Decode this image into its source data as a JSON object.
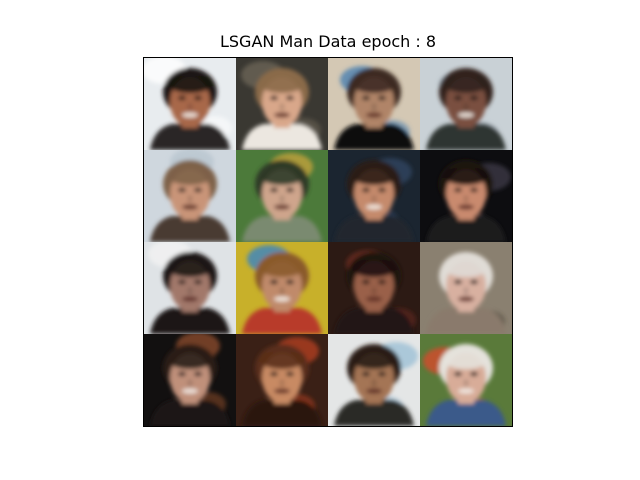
{
  "figure": {
    "title": "LSGAN Man Data epoch : 8"
  },
  "samples": [
    {
      "bg": "#e8ecef",
      "skin": "#a8674a",
      "hair": "#1a1412",
      "accent": "#ffffff",
      "shirt": "#2a2626"
    },
    {
      "bg": "#3a3832",
      "skin": "#d9a78a",
      "hair": "#8a6a48",
      "accent": "#6c6456",
      "shirt": "#ece7e0"
    },
    {
      "bg": "#d4c8b4",
      "skin": "#b08468",
      "hair": "#3d2a22",
      "accent": "#4a7fb0",
      "shirt": "#111111"
    },
    {
      "bg": "#c9d1d6",
      "skin": "#7a5040",
      "hair": "#30241e",
      "accent": "#8a96a0",
      "shirt": "#2e3430"
    },
    {
      "bg": "#cfd7de",
      "skin": "#c99478",
      "hair": "#7e6248",
      "accent": "#b9c5cf",
      "shirt": "#4a3a30"
    },
    {
      "bg": "#4c7a3a",
      "skin": "#cfa58c",
      "hair": "#2e3a28",
      "accent": "#c2a23c",
      "shirt": "#7a8a70"
    },
    {
      "bg": "#1b2530",
      "skin": "#c58a6c",
      "hair": "#2a1d16",
      "accent": "#2f4660",
      "shirt": "#22282e"
    },
    {
      "bg": "#0d0d10",
      "skin": "#c98a6e",
      "hair": "#1a1210",
      "accent": "#3c3a46",
      "shirt": "#1c1a1e"
    },
    {
      "bg": "#dfe3e6",
      "skin": "#a2786a",
      "hair": "#1e1816",
      "accent": "#f2f2f2",
      "shirt": "#1a1818"
    },
    {
      "bg": "#c8b02a",
      "skin": "#c08a6a",
      "hair": "#8a5a2a",
      "accent": "#3a84c4",
      "shirt": "#b83a2a"
    },
    {
      "bg": "#2c1a14",
      "skin": "#9a6048",
      "hair": "#1e1210",
      "accent": "#6a2a20",
      "shirt": "#201614"
    },
    {
      "bg": "#8a8070",
      "skin": "#d8b0a0",
      "hair": "#e0dcd6",
      "accent": "#3a342c",
      "shirt": "#8a7a6c"
    },
    {
      "bg": "#121010",
      "skin": "#c0907a",
      "hair": "#2a1e18",
      "accent": "#8a4a2a",
      "shirt": "#1a1616"
    },
    {
      "bg": "#3a2016",
      "skin": "#c88a64",
      "hair": "#5a2e1a",
      "accent": "#b04020",
      "shirt": "#2a1810"
    },
    {
      "bg": "#e4e6e6",
      "skin": "#a47454",
      "hair": "#2a1e16",
      "accent": "#9ec0d6",
      "shirt": "#2c2a28"
    },
    {
      "bg": "#5a7a3a",
      "skin": "#d8ac98",
      "hair": "#e4e2dc",
      "accent": "#d44a2a",
      "shirt": "#3a5a8a"
    }
  ]
}
